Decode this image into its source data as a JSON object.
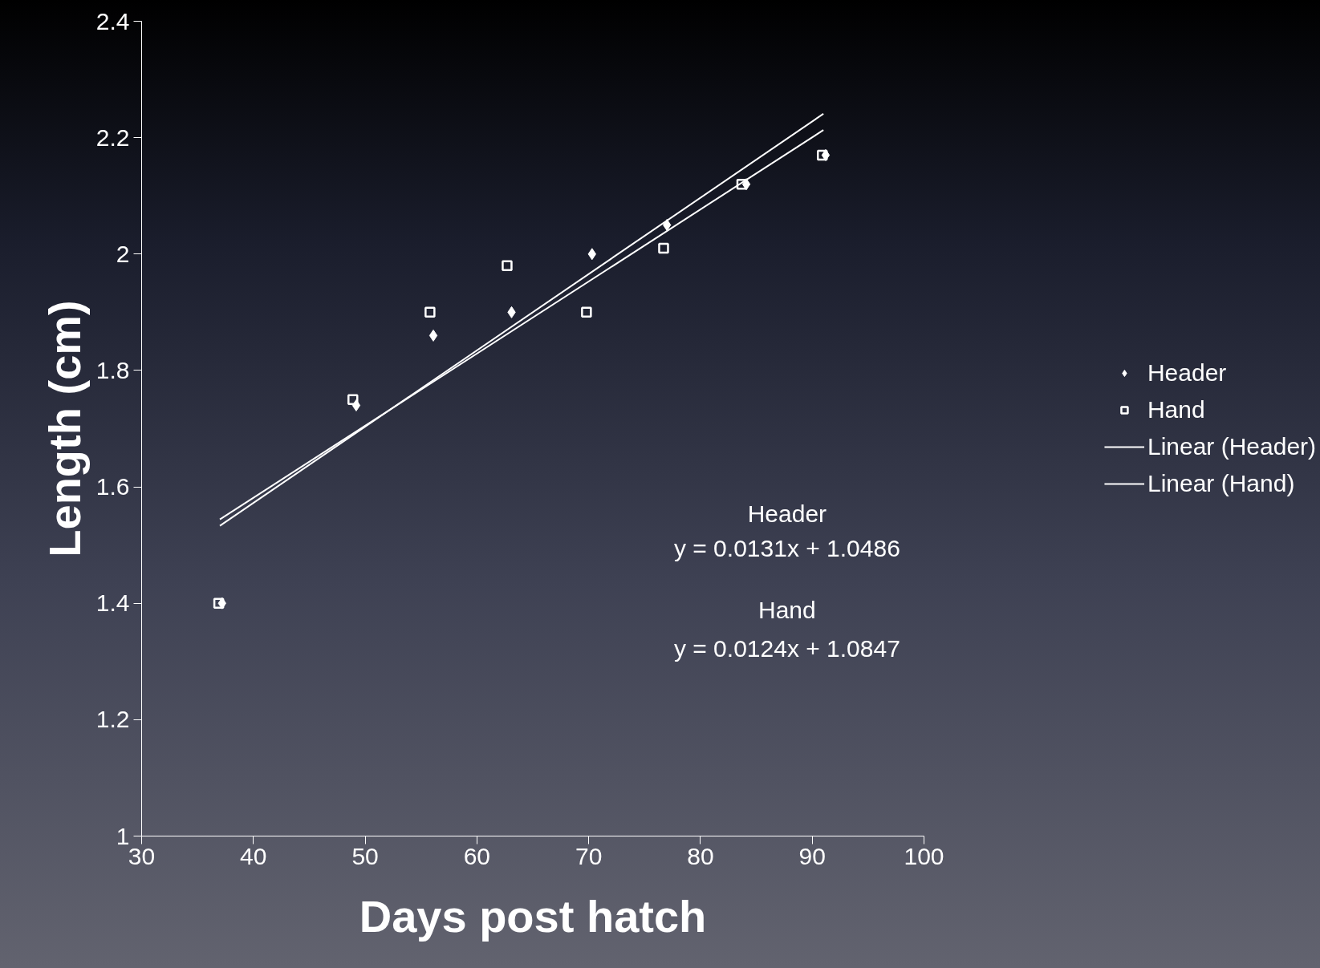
{
  "chart_data": {
    "type": "scatter",
    "xlabel": "Days post hatch",
    "ylabel": "Length (cm)",
    "xlim": [
      30,
      100
    ],
    "ylim": [
      1,
      2.4
    ],
    "xticks": [
      30,
      40,
      50,
      60,
      70,
      80,
      90,
      100
    ],
    "yticks": [
      1,
      1.2,
      1.4,
      1.6,
      1.8,
      2,
      2.2,
      2.4
    ],
    "grid": false,
    "legend": "right",
    "annotations": [
      "Header",
      "y = 0.0131x + 1.0486",
      "Hand",
      "y = 0.0124x + 1.0847"
    ],
    "series": [
      {
        "name": "Header",
        "marker": "diamond",
        "color": "#ffffff",
        "x": [
          37.2,
          49.2,
          56.1,
          63.1,
          70.3,
          77.0,
          84.1,
          91.2
        ],
        "values": [
          1.4,
          1.74,
          1.86,
          1.9,
          2.0,
          2.05,
          2.12,
          2.17
        ]
      },
      {
        "name": "Hand",
        "marker": "square",
        "color": "#ffffff",
        "x": [
          36.9,
          48.9,
          55.8,
          62.7,
          69.8,
          76.7,
          83.7,
          90.9
        ],
        "values": [
          1.4,
          1.75,
          1.9,
          1.98,
          1.9,
          2.01,
          2.12,
          2.17
        ]
      },
      {
        "name": "Linear (Header)",
        "type": "line",
        "color": "#ffffff",
        "x": [
          37,
          91
        ],
        "values": [
          1.533,
          2.241
        ]
      },
      {
        "name": "Linear (Hand)",
        "type": "line",
        "color": "#ffffff",
        "x": [
          37,
          91
        ],
        "values": [
          1.544,
          2.213
        ]
      }
    ]
  }
}
